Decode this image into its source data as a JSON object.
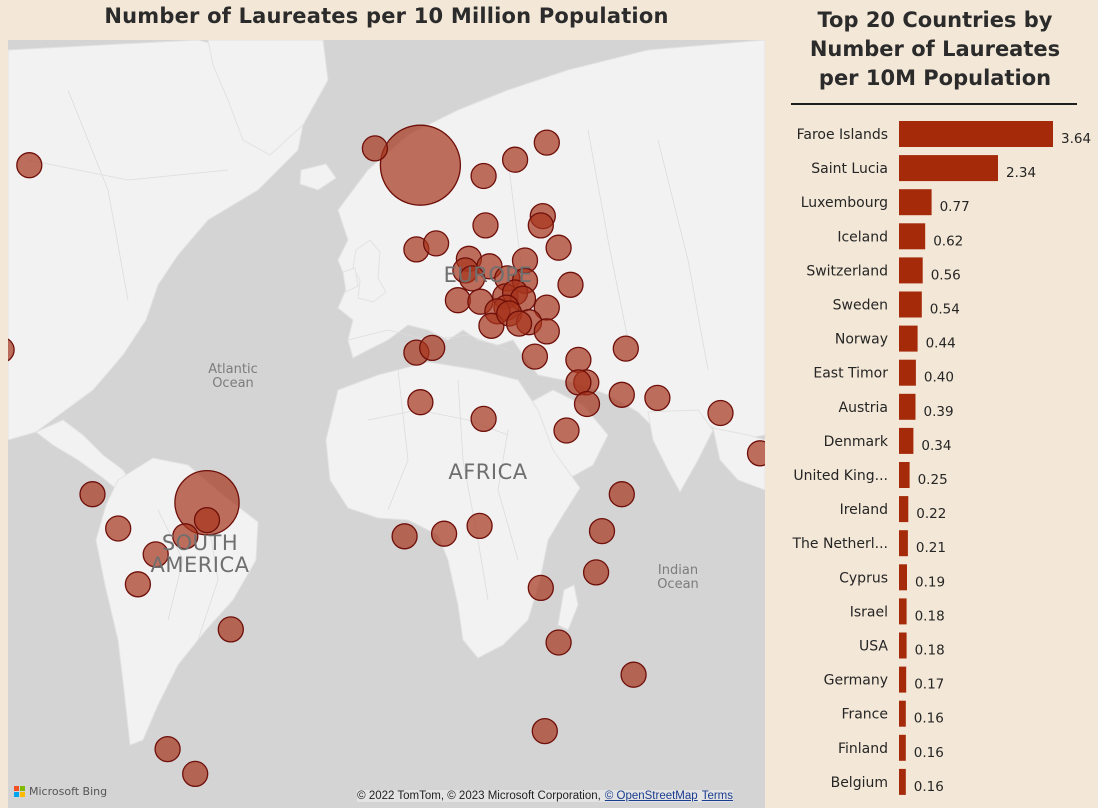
{
  "chart_data": [
    {
      "type": "map",
      "title": "Number of Laureates per 10 Million Population",
      "region_labels": [
        "EUROPE",
        "AFRICA",
        "SOUTH AMERICA"
      ],
      "ocean_labels": [
        "Atlantic Ocean",
        "Indian Ocean"
      ],
      "bubbles": [
        {
          "lon": -18.5,
          "lat": 63.5
        },
        {
          "lon": -7.0,
          "lat": 62.0
        },
        {
          "lon": 9.0,
          "lat": 61.0
        },
        {
          "lon": 17.0,
          "lat": 62.5
        },
        {
          "lon": 25.0,
          "lat": 64.0
        },
        {
          "lon": 9.5,
          "lat": 56.0
        },
        {
          "lon": 24.0,
          "lat": 57.0
        },
        {
          "lon": 23.5,
          "lat": 56.0
        },
        {
          "lon": 28.0,
          "lat": 53.5
        },
        {
          "lon": -8.0,
          "lat": 53.3
        },
        {
          "lon": -3.0,
          "lat": 54.0
        },
        {
          "lon": 5.3,
          "lat": 52.2
        },
        {
          "lon": 10.5,
          "lat": 51.3
        },
        {
          "lon": 19.5,
          "lat": 52.0
        },
        {
          "lon": 4.4,
          "lat": 50.8
        },
        {
          "lon": 6.1,
          "lat": 49.8
        },
        {
          "lon": 15.0,
          "lat": 49.8
        },
        {
          "lon": 19.5,
          "lat": 49.5
        },
        {
          "lon": 31.0,
          "lat": 49.0
        },
        {
          "lon": 2.5,
          "lat": 47.0
        },
        {
          "lon": 8.2,
          "lat": 46.8
        },
        {
          "lon": 14.5,
          "lat": 47.5
        },
        {
          "lon": 17.0,
          "lat": 48.0
        },
        {
          "lon": 19.0,
          "lat": 47.2
        },
        {
          "lon": 14.8,
          "lat": 46.0
        },
        {
          "lon": 12.5,
          "lat": 45.5
        },
        {
          "lon": 11.0,
          "lat": 43.5
        },
        {
          "lon": 15.5,
          "lat": 45.2
        },
        {
          "lon": 25.0,
          "lat": 46.0
        },
        {
          "lon": 20.5,
          "lat": 44.0
        },
        {
          "lon": 18.0,
          "lat": 43.8
        },
        {
          "lon": 25.0,
          "lat": 42.7
        },
        {
          "lon": -8.0,
          "lat": 39.6
        },
        {
          "lon": -4.0,
          "lat": 40.3
        },
        {
          "lon": 22.0,
          "lat": 39.0
        },
        {
          "lon": 33.0,
          "lat": 38.5
        },
        {
          "lon": 35.0,
          "lat": 35.0
        },
        {
          "lon": 33.0,
          "lat": 35.0
        },
        {
          "lon": 45.0,
          "lat": 40.2
        },
        {
          "lon": 35.2,
          "lat": 31.5
        },
        {
          "lon": 44.0,
          "lat": 33.0
        },
        {
          "lon": 53.0,
          "lat": 32.5
        },
        {
          "lon": 30.0,
          "lat": 27.0
        },
        {
          "lon": 69.0,
          "lat": 30.0
        },
        {
          "lon": -7.0,
          "lat": 31.8
        },
        {
          "lon": 9.0,
          "lat": 29.0
        },
        {
          "lon": 79.0,
          "lat": 23.0
        },
        {
          "lon": 90.0,
          "lat": 23.8
        },
        {
          "lon": 96.0,
          "lat": 21.0
        },
        {
          "lon": 44.0,
          "lat": 15.5
        },
        {
          "lon": -11.0,
          "lat": 7.5
        },
        {
          "lon": -1.0,
          "lat": 8.0
        },
        {
          "lon": 8.0,
          "lat": 9.5
        },
        {
          "lon": 39.0,
          "lat": 8.5
        },
        {
          "lon": 37.5,
          "lat": 0.5
        },
        {
          "lon": 23.5,
          "lat": -2.5
        },
        {
          "lon": 28.0,
          "lat": -13.0
        },
        {
          "lon": 47.0,
          "lat": -19.0
        },
        {
          "lon": 24.5,
          "lat": -29.0
        },
        {
          "lon": -106.0,
          "lat": 62.0
        },
        {
          "lon": 104.0,
          "lat": 60.0
        },
        {
          "lon": -113.0,
          "lat": 40.0
        },
        {
          "lon": 117.0,
          "lat": 35.5
        },
        {
          "lon": -115.0,
          "lat": 26.0
        },
        {
          "lon": -90.0,
          "lat": 15.5
        },
        {
          "lon": -83.5,
          "lat": 9.0
        },
        {
          "lon": -61.0,
          "lat": 13.9
        },
        {
          "lon": -61.0,
          "lat": 10.6
        },
        {
          "lon": -66.5,
          "lat": 7.5
        },
        {
          "lon": -74.0,
          "lat": 4.0
        },
        {
          "lon": -78.5,
          "lat": -1.8
        },
        {
          "lon": -55.0,
          "lat": -10.5
        },
        {
          "lon": -71.0,
          "lat": -32.0
        },
        {
          "lon": -64.0,
          "lat": -36.0
        }
      ]
    },
    {
      "type": "bar",
      "orientation": "horizontal",
      "title": "Top 20 Countries by Number of Laureates per 10M Population",
      "categories": [
        "Faroe Islands",
        "Saint Lucia",
        "Luxembourg",
        "Iceland",
        "Switzerland",
        "Sweden",
        "Norway",
        "East Timor",
        "Austria",
        "Denmark",
        "United King...",
        "Ireland",
        "The Netherl...",
        "Cyprus",
        "Israel",
        "USA",
        "Germany",
        "France",
        "Finland",
        "Belgium"
      ],
      "values": [
        3.64,
        2.34,
        0.77,
        0.62,
        0.56,
        0.54,
        0.44,
        0.4,
        0.39,
        0.34,
        0.25,
        0.22,
        0.21,
        0.19,
        0.18,
        0.18,
        0.17,
        0.16,
        0.16,
        0.16
      ],
      "value_labels": [
        "3.64",
        "2.34",
        "0.77",
        "0.62",
        "0.56",
        "0.54",
        "0.44",
        "0.40",
        "0.39",
        "0.34",
        "0.25",
        "0.22",
        "0.21",
        "0.19",
        "0.18",
        "0.18",
        "0.17",
        "0.16",
        "0.16",
        "0.16"
      ],
      "xlim": [
        0,
        3.64
      ],
      "grid": false,
      "bar_color": "#a52a0a"
    }
  ],
  "colors": {
    "background": "#f3e8d7",
    "ocean": "#d4d4d4",
    "land": "#f2f2f2",
    "bubble_fill": "#a6341c",
    "bubble_stroke": "#6e0f0a",
    "bar": "#a52a0a"
  },
  "map_footer": {
    "logo_text": "Microsoft Bing",
    "attribution": "© 2022 TomTom, © 2023 Microsoft Corporation,",
    "osm_link": "© OpenStreetMap",
    "terms_link": "Terms"
  }
}
